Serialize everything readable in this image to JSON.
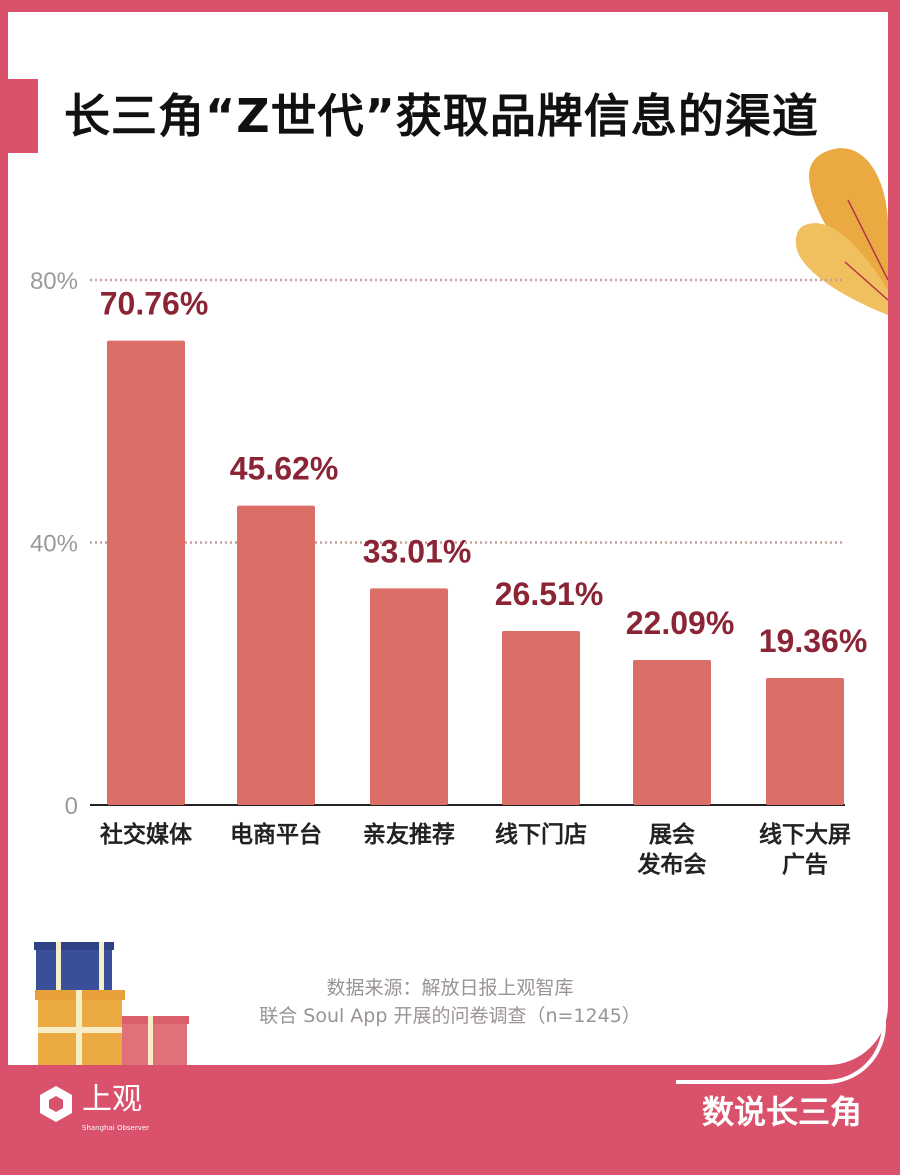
{
  "title": "长三角“Z世代”获取品牌信息的渠道",
  "chart_data": {
    "type": "bar",
    "title": "长三角“Z世代”获取品牌信息的渠道",
    "categories": [
      "社交媒体",
      "电商平台",
      "亲友推荐",
      "线下门店",
      "展会\n发布会",
      "线下大屏\n广告"
    ],
    "values": [
      70.76,
      45.62,
      33.01,
      26.51,
      22.09,
      19.36
    ],
    "data_labels": [
      "70.76%",
      "45.62%",
      "33.01%",
      "26.51%",
      "22.09%",
      "19.36%"
    ],
    "ylim": [
      0,
      80
    ],
    "yticks": [
      0,
      40,
      80
    ],
    "ytick_labels": [
      "0",
      "40%",
      "80%"
    ],
    "grid": "dotted at 40% and 80%",
    "colors": {
      "bar": "#dc6e68",
      "label": "#8b2535",
      "frame": "#d9516a"
    }
  },
  "source": {
    "line1": "数据来源：解放日报上观智库",
    "line2": "联合 Soul App 开展的问卷调查（n=1245）"
  },
  "footer": {
    "logo_text": "上观",
    "logo_sub": "Shanghai Observer",
    "brand": "数说长三角"
  }
}
